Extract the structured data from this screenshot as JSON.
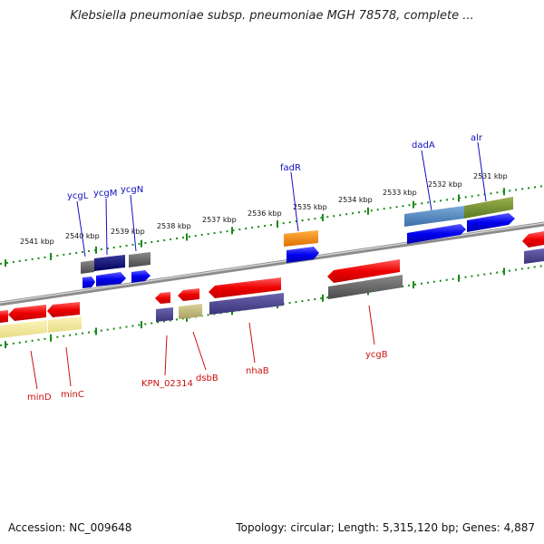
{
  "title": "Klebsiella pneumoniae subsp. pneumoniae MGH 78578, complete ...",
  "footer": {
    "accession": "Accession: NC_009648",
    "summary": "Topology: circular; Length: 5,315,120 bp; Genes: 4,887"
  },
  "kbp_labels": [
    "2541 kbp",
    "2540 kbp",
    "2539 kbp",
    "2538 kbp",
    "2537 kbp",
    "2536 kbp",
    "2535 kbp",
    "2534 kbp",
    "2533 kbp",
    "2532 kbp",
    "2531 kbp"
  ],
  "top_gene_labels": [
    "ycgL",
    "ycgM",
    "ycgN",
    "fadR",
    "dadA",
    "alr"
  ],
  "bottom_gene_labels": [
    "minD",
    "minC",
    "KPN_02314",
    "dsbB",
    "nhaB",
    "ycgB"
  ],
  "colors": {
    "forward_label": "#1010c0",
    "reverse_label": "#cc1010",
    "tick": "#1a8a1a",
    "backbone": "#8c8c8c"
  }
}
